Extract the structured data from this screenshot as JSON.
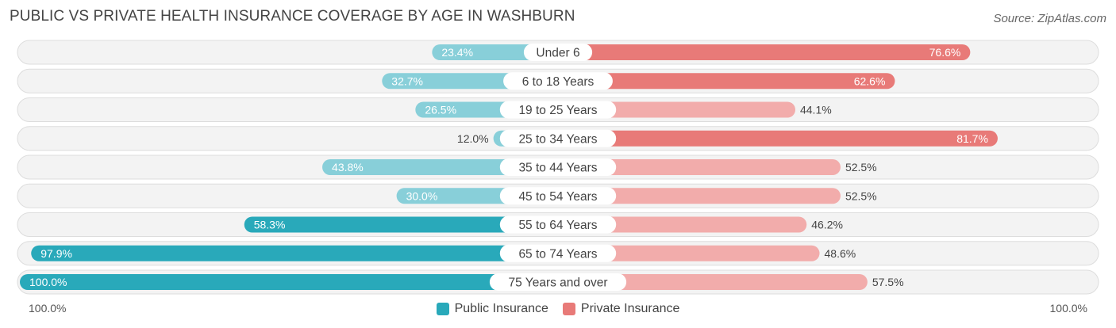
{
  "header": {
    "title": "PUBLIC VS PRIVATE HEALTH INSURANCE COVERAGE BY AGE IN WASHBURN",
    "source": "Source: ZipAtlas.com"
  },
  "colors": {
    "public": "#29a9ba",
    "public_light": "#88cfd9",
    "private": "#e87a78",
    "private_light": "#f2acab"
  },
  "chart_data": {
    "type": "bar",
    "orientation": "horizontal-diverging",
    "title": "PUBLIC VS PRIVATE HEALTH INSURANCE COVERAGE BY AGE IN WASHBURN",
    "categories": [
      "Under 6",
      "6 to 18 Years",
      "19 to 25 Years",
      "25 to 34 Years",
      "35 to 44 Years",
      "45 to 54 Years",
      "55 to 64 Years",
      "65 to 74 Years",
      "75 Years and over"
    ],
    "series": [
      {
        "name": "Public Insurance",
        "side": "left",
        "values": [
          23.4,
          32.7,
          26.5,
          12.0,
          43.8,
          30.0,
          58.3,
          97.9,
          100.0
        ],
        "labels": [
          "23.4%",
          "32.7%",
          "26.5%",
          "12.0%",
          "43.8%",
          "30.0%",
          "58.3%",
          "97.9%",
          "100.0%"
        ]
      },
      {
        "name": "Private Insurance",
        "side": "right",
        "values": [
          76.6,
          62.6,
          44.1,
          81.7,
          52.5,
          52.5,
          46.2,
          48.6,
          57.5
        ],
        "labels": [
          "76.6%",
          "62.6%",
          "44.1%",
          "81.7%",
          "52.5%",
          "52.5%",
          "46.2%",
          "48.6%",
          "57.5%"
        ]
      }
    ],
    "xlim": [
      0,
      100
    ],
    "axis_left_label": "100.0%",
    "axis_right_label": "100.0%",
    "legend_position": "bottom-center",
    "grid": false
  }
}
